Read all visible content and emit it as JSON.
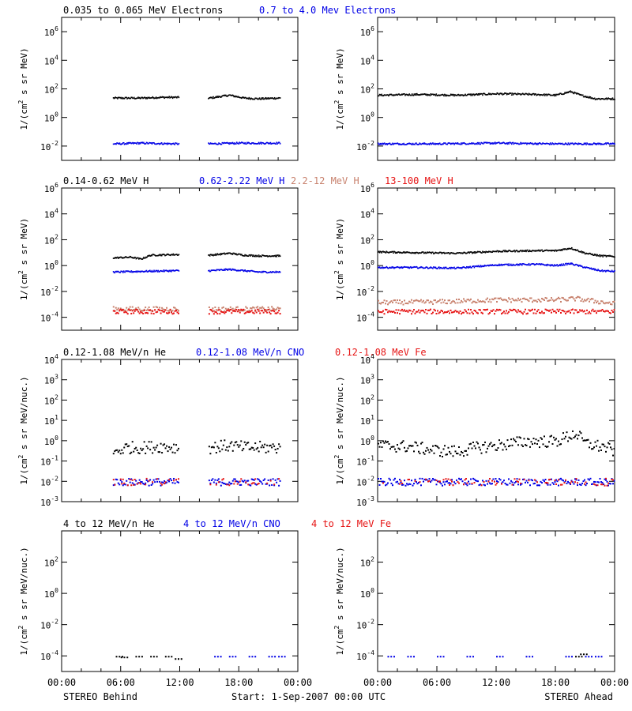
{
  "colors": {
    "black": "#000000",
    "blue": "#0000e6",
    "brown": "#c8826e",
    "red": "#e61414"
  },
  "time_axis": {
    "ticks": [
      "00:00",
      "06:00",
      "12:00",
      "18:00",
      "00:00"
    ],
    "left_footer": "STEREO Behind",
    "center_footer": "Start:  1-Sep-2007 00:00 UTC",
    "right_footer": "STEREO Ahead"
  },
  "chart_data": [
    {
      "type": "scatter",
      "row": "electrons",
      "legend": [
        {
          "label": "0.035 to 0.065 MeV Electrons",
          "color": "black"
        },
        {
          "label": "0.7 to 4.0 Mev Electrons",
          "color": "blue"
        }
      ],
      "ylabel": "1/(cm² s sr MeV)",
      "ylabel_base": "1/(cm",
      "ylabel_rest": " s sr MeV)",
      "ylim_log10": [
        -3,
        7
      ],
      "y_ticks": [
        "10^6",
        "10^4",
        "10^2",
        "10^0",
        "10^-2"
      ],
      "behind": {
        "gaps_hours": [
          [
            11.9,
            14.8
          ]
        ],
        "start_hour": 5.2,
        "end_hour": 22.2,
        "series": [
          {
            "name": "0.035 to 0.065 MeV Electrons",
            "color": "black",
            "x_hours": [
              5.5,
              8,
              10,
              11.5,
              15,
              17,
              18.5,
              20,
              22
            ],
            "log10_values": [
              1.4,
              1.4,
              1.45,
              1.45,
              1.4,
              1.6,
              1.4,
              1.35,
              1.4
            ]
          },
          {
            "name": "0.7 to 4.0 Mev Electrons",
            "color": "blue",
            "x_hours": [
              5.5,
              8,
              11.5,
              15,
              18,
              22
            ],
            "log10_values": [
              -1.8,
              -1.75,
              -1.8,
              -1.8,
              -1.75,
              -1.75
            ]
          }
        ]
      },
      "ahead": {
        "gaps_hours": [],
        "start_hour": 0,
        "end_hour": 24,
        "series": [
          {
            "name": "0.035 to 0.065 MeV Electrons",
            "color": "black",
            "x_hours": [
              0,
              4,
              8,
              12,
              16,
              18,
              19.5,
              20.5,
              22,
              24
            ],
            "log10_values": [
              1.6,
              1.65,
              1.6,
              1.7,
              1.65,
              1.6,
              1.85,
              1.6,
              1.35,
              1.35
            ]
          },
          {
            "name": "0.7 to 4.0 Mev Electrons",
            "color": "blue",
            "x_hours": [
              0,
              6,
              12,
              18,
              24
            ],
            "log10_values": [
              -1.8,
              -1.8,
              -1.75,
              -1.8,
              -1.8
            ]
          }
        ]
      }
    },
    {
      "type": "scatter",
      "row": "protons",
      "legend": [
        {
          "label": "0.14-0.62 MeV H",
          "color": "black"
        },
        {
          "label": "0.62-2.22 MeV H",
          "color": "blue"
        },
        {
          "label": "2.2-12 MeV H",
          "color": "brown"
        },
        {
          "label": "13-100 MeV H",
          "color": "red"
        }
      ],
      "ylabel_base": "1/(cm",
      "ylabel_rest": " s sr MeV)",
      "ylim_log10": [
        -5,
        6
      ],
      "y_ticks": [
        "10^6",
        "10^4",
        "10^2",
        "10^0",
        "10^-2",
        "10^-4"
      ],
      "behind": {
        "gaps_hours": [
          [
            11.9,
            14.8
          ]
        ],
        "start_hour": 5.2,
        "end_hour": 22.2,
        "series": [
          {
            "name": "0.14-0.62 MeV H",
            "color": "black",
            "x_hours": [
              5.5,
              7,
              8,
              9,
              11.5,
              15,
              17,
              18.5,
              20,
              22
            ],
            "log10_values": [
              0.65,
              0.7,
              0.55,
              0.85,
              0.9,
              0.85,
              1.0,
              0.85,
              0.8,
              0.8
            ]
          },
          {
            "name": "0.62-2.22 MeV H",
            "color": "blue",
            "x_hours": [
              5.5,
              8,
              11.5,
              15,
              17,
              20,
              22
            ],
            "log10_values": [
              -0.45,
              -0.4,
              -0.35,
              -0.35,
              -0.25,
              -0.45,
              -0.45
            ]
          },
          {
            "name": "2.2-12 MeV H",
            "color": "brown",
            "x_hours": [
              5.5,
              11.5,
              15,
              22
            ],
            "log10_values": [
              -3.3,
              -3.3,
              -3.3,
              -3.3
            ]
          },
          {
            "name": "13-100 MeV H",
            "color": "red",
            "x_hours": [
              5.5,
              11.5,
              15,
              22
            ],
            "log10_values": [
              -3.5,
              -3.5,
              -3.5,
              -3.5
            ]
          }
        ]
      },
      "ahead": {
        "gaps_hours": [],
        "start_hour": 0,
        "end_hour": 24,
        "series": [
          {
            "name": "0.14-0.62 MeV H",
            "color": "black",
            "x_hours": [
              0,
              4,
              8,
              12,
              16,
              18,
              19.5,
              21,
              22.5,
              24
            ],
            "log10_values": [
              1.1,
              1.05,
              1.0,
              1.15,
              1.2,
              1.2,
              1.4,
              1.0,
              0.8,
              0.75
            ]
          },
          {
            "name": "0.62-2.22 MeV H",
            "color": "blue",
            "x_hours": [
              0,
              4,
              8,
              12,
              16,
              18,
              19.5,
              21,
              22.5,
              24
            ],
            "log10_values": [
              -0.1,
              -0.1,
              -0.15,
              0.1,
              0.15,
              0.05,
              0.2,
              -0.1,
              -0.35,
              -0.4
            ]
          },
          {
            "name": "2.2-12 MeV H",
            "color": "brown",
            "x_hours": [
              0,
              6,
              12,
              18,
              20,
              24
            ],
            "log10_values": [
              -2.8,
              -2.75,
              -2.6,
              -2.6,
              -2.5,
              -2.9
            ]
          },
          {
            "name": "13-100 MeV H",
            "color": "red",
            "x_hours": [
              0,
              6,
              12,
              18,
              24
            ],
            "log10_values": [
              -3.5,
              -3.5,
              -3.5,
              -3.5,
              -3.5
            ]
          }
        ]
      }
    },
    {
      "type": "scatter",
      "row": "heavy_low",
      "legend": [
        {
          "label": "0.12-1.08 MeV/n He",
          "color": "black"
        },
        {
          "label": "0.12-1.08 MeV/n CNO",
          "color": "blue"
        },
        {
          "label": "0.12-1.08 MeV Fe",
          "color": "red"
        }
      ],
      "ylabel_base": "1/(cm",
      "ylabel_rest": " s sr MeV/nuc.)",
      "ylim_log10": [
        -3,
        4
      ],
      "y_ticks": [
        "10^4",
        "10^3",
        "10^2",
        "10^1",
        "10^0",
        "10^-1",
        "10^-2",
        "10^-3"
      ],
      "behind": {
        "gaps_hours": [
          [
            11.9,
            14.8
          ]
        ],
        "start_hour": 5.2,
        "end_hour": 22.2,
        "series": [
          {
            "name": "0.12-1.08 MeV/n He",
            "color": "black",
            "x_hours": [
              5.5,
              6.5,
              8,
              10,
              11.5,
              15,
              17,
              18.5,
              20,
              22
            ],
            "log10_values": [
              -0.5,
              -0.3,
              -0.3,
              -0.25,
              -0.3,
              -0.3,
              -0.2,
              -0.3,
              -0.3,
              -0.3
            ]
          },
          {
            "name": "0.12-1.08 MeV/n CNO",
            "color": "blue",
            "x_hours": [
              5.5,
              11.5,
              15,
              22
            ],
            "log10_values": [
              -2.0,
              -2.0,
              -2.0,
              -2.0
            ]
          },
          {
            "name": "0.12-1.08 MeV Fe",
            "color": "red",
            "x_hours": [
              15,
              22
            ],
            "log10_values": [
              -2.0,
              -2.0
            ]
          }
        ]
      },
      "ahead": {
        "gaps_hours": [],
        "start_hour": 0,
        "end_hour": 24,
        "series": [
          {
            "name": "0.12-1.08 MeV/n He",
            "color": "black",
            "x_hours": [
              0,
              3,
              6,
              8,
              10,
              12,
              15,
              18,
              20,
              21,
              23,
              24
            ],
            "log10_values": [
              -0.2,
              -0.25,
              -0.45,
              -0.5,
              -0.3,
              -0.2,
              0.0,
              0.0,
              0.4,
              -0.1,
              -0.3,
              -0.5
            ]
          },
          {
            "name": "0.12-1.08 MeV/n CNO",
            "color": "blue",
            "x_hours": [
              0,
              24
            ],
            "log10_values": [
              -2.0,
              -2.0
            ]
          },
          {
            "name": "0.12-1.08 MeV Fe",
            "color": "red",
            "x_hours": [
              4,
              20
            ],
            "log10_values": [
              -2.0,
              -2.0
            ]
          }
        ]
      }
    },
    {
      "type": "scatter",
      "row": "heavy_high",
      "legend": [
        {
          "label": "4 to 12 MeV/n He",
          "color": "black"
        },
        {
          "label": "4 to 12 MeV/n CNO",
          "color": "blue"
        },
        {
          "label": "4 to 12 MeV Fe",
          "color": "red"
        }
      ],
      "ylabel_base": "1/(cm",
      "ylabel_rest": " s sr MeV/nuc.)",
      "ylim_log10": [
        -5,
        4
      ],
      "y_ticks": [
        "10^2",
        "10^0",
        "10^-2",
        "10^-4"
      ],
      "behind": {
        "gaps_hours": [],
        "start_hour": 5.2,
        "end_hour": 22.2,
        "series": [
          {
            "name": "4 to 12 MeV/n He",
            "color": "black",
            "x_hours": [
              5.5,
              6,
              7.5,
              9,
              10.5,
              11.5
            ],
            "log10_values": [
              -4.0,
              -4.05,
              -4.0,
              -4.0,
              -4.0,
              -4.15
            ]
          },
          {
            "name": "4 to 12 MeV/n CNO",
            "color": "blue",
            "x_hours": [
              15.5,
              17,
              19,
              21,
              22
            ],
            "log10_values": [
              -4.0,
              -4.0,
              -4.0,
              -4.0,
              -4.0
            ]
          }
        ]
      },
      "ahead": {
        "gaps_hours": [],
        "start_hour": 0,
        "end_hour": 24,
        "series": [
          {
            "name": "4 to 12 MeV/n CNO",
            "color": "blue",
            "x_hours": [
              1,
              3,
              6,
              9,
              12,
              15,
              19,
              21,
              22
            ],
            "log10_values": [
              -4.0,
              -4.0,
              -4.0,
              -4.0,
              -4.0,
              -4.0,
              -4.0,
              -4.0,
              -4.0
            ]
          },
          {
            "name": "4 to 12 MeV/n He",
            "color": "black",
            "x_hours": [
              20,
              20.5
            ],
            "log10_values": [
              -4.0,
              -3.85
            ]
          }
        ]
      }
    }
  ]
}
